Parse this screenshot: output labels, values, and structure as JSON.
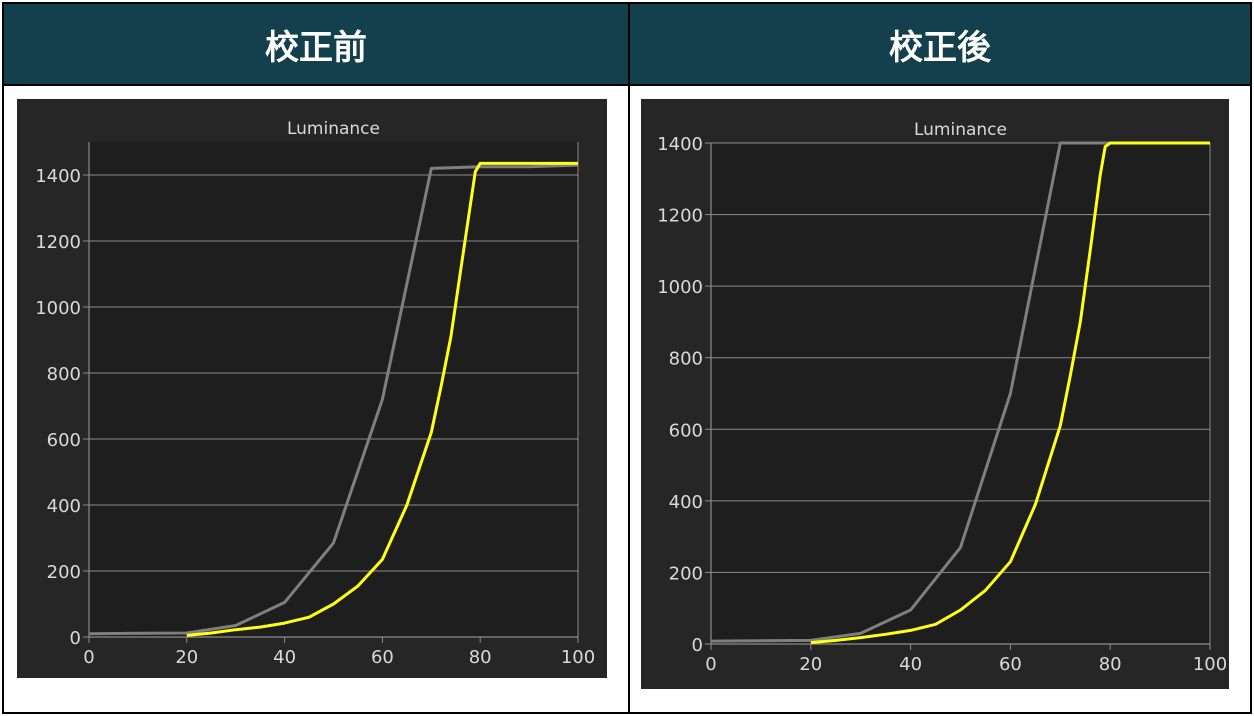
{
  "headers": {
    "before": "校正前",
    "after": "校正後"
  },
  "colors": {
    "header_bg": "#143f4c",
    "panel_bg": "#262626",
    "plot_bg": "#1e1e1e",
    "reference": "#7f7f7f",
    "measured": "#ffff1a",
    "grid": "#8c8c8c",
    "text": "#d9d9d9"
  },
  "chart_data": [
    {
      "type": "line",
      "title": "Luminance",
      "xlim": [
        0,
        100
      ],
      "ylim": [
        0,
        1500
      ],
      "xticks": [
        0,
        20,
        40,
        60,
        80,
        100
      ],
      "yticks": [
        0,
        200,
        400,
        600,
        800,
        1000,
        1200,
        1400
      ],
      "grid": true,
      "series": [
        {
          "x": [
            0,
            20,
            30,
            40,
            50,
            60,
            70,
            80,
            90,
            100
          ],
          "values": [
            10,
            12,
            35,
            105,
            285,
            720,
            1420,
            1425,
            1425,
            1430
          ]
        },
        {
          "x": [
            20,
            25,
            30,
            35,
            40,
            45,
            50,
            55,
            60,
            65,
            70,
            72,
            74,
            76,
            78,
            79,
            80,
            85,
            90,
            95,
            100
          ],
          "values": [
            5,
            12,
            22,
            30,
            42,
            60,
            100,
            155,
            235,
            400,
            620,
            760,
            910,
            1110,
            1310,
            1410,
            1435,
            1435,
            1435,
            1435,
            1435
          ]
        }
      ]
    },
    {
      "type": "line",
      "title": "Luminance",
      "xlim": [
        0,
        100
      ],
      "ylim": [
        0,
        1400
      ],
      "xticks": [
        0,
        20,
        40,
        60,
        80,
        100
      ],
      "yticks": [
        0,
        200,
        400,
        600,
        800,
        1000,
        1200,
        1400
      ],
      "grid": true,
      "series": [
        {
          "x": [
            0,
            20,
            30,
            40,
            50,
            60,
            70,
            80,
            90,
            100
          ],
          "values": [
            8,
            10,
            30,
            95,
            270,
            700,
            1400,
            1400,
            1400,
            1400
          ]
        },
        {
          "x": [
            20,
            25,
            30,
            35,
            40,
            45,
            50,
            55,
            60,
            65,
            70,
            72,
            74,
            76,
            78,
            79,
            80,
            85,
            90,
            95,
            100
          ],
          "values": [
            4,
            10,
            18,
            27,
            38,
            55,
            95,
            150,
            230,
            390,
            610,
            750,
            900,
            1100,
            1310,
            1390,
            1400,
            1400,
            1400,
            1400,
            1400
          ]
        }
      ]
    }
  ]
}
